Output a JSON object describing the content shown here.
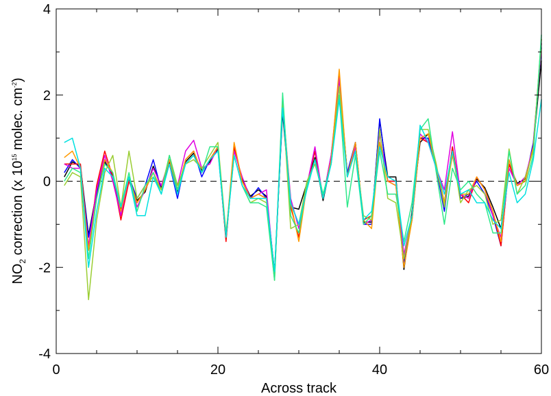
{
  "chart_data": {
    "type": "line",
    "xlabel": "Across track",
    "ylabel_parts": [
      "NO",
      "2",
      " correction (x 10",
      "15",
      " molec. cm",
      "-2",
      ")"
    ],
    "x": [
      1,
      2,
      3,
      4,
      5,
      6,
      7,
      8,
      9,
      10,
      11,
      12,
      13,
      14,
      15,
      16,
      17,
      18,
      19,
      20,
      21,
      22,
      23,
      24,
      25,
      26,
      27,
      28,
      29,
      30,
      31,
      32,
      33,
      34,
      35,
      36,
      37,
      38,
      39,
      40,
      41,
      42,
      43,
      44,
      45,
      46,
      47,
      48,
      49,
      50,
      51,
      52,
      53,
      54,
      55,
      56,
      57,
      58,
      59,
      60
    ],
    "series": [
      {
        "color": "#000000",
        "values": [
          0.1,
          0.45,
          0.35,
          -1.25,
          -0.25,
          0.45,
          0.15,
          -0.65,
          0.05,
          -0.45,
          -0.25,
          0.35,
          -0.15,
          0.45,
          -0.25,
          0.45,
          0.65,
          0.25,
          0.45,
          0.75,
          -1.35,
          0.75,
          0.05,
          -0.35,
          -0.2,
          -0.35,
          -2.1,
          1.6,
          -0.6,
          -0.65,
          -0.05,
          0.55,
          -0.45,
          0.45,
          2.4,
          0.15,
          0.9,
          -0.95,
          -0.95,
          1.4,
          0.1,
          0.1,
          -2.05,
          -0.7,
          0.9,
          1.1,
          0.35,
          -0.5,
          0.7,
          -0.4,
          -0.35,
          0.05,
          -0.15,
          -0.6,
          -1.1,
          0.4,
          -0.05,
          0.05,
          0.8,
          2.8
        ]
      },
      {
        "color": "#0000ff",
        "values": [
          0.2,
          0.5,
          0.3,
          -1.3,
          -0.3,
          0.5,
          0.1,
          -0.8,
          0.1,
          -0.4,
          -0.1,
          0.5,
          -0.2,
          0.4,
          -0.4,
          0.5,
          0.7,
          0.1,
          0.5,
          0.8,
          -1.3,
          0.8,
          0.0,
          -0.4,
          -0.15,
          -0.4,
          -2.2,
          1.7,
          -0.5,
          -1.0,
          -0.1,
          0.7,
          -0.4,
          0.6,
          2.2,
          0.2,
          0.9,
          -1.0,
          -1.0,
          1.45,
          0.0,
          0.0,
          -1.9,
          -0.9,
          1.0,
          1.0,
          0.3,
          -0.7,
          0.8,
          -0.4,
          -0.3,
          0.0,
          -0.3,
          -0.8,
          -1.5,
          0.4,
          -0.1,
          0.0,
          0.9,
          3.1
        ]
      },
      {
        "color": "#ff0000",
        "values": [
          0.4,
          0.4,
          0.4,
          -1.6,
          -0.1,
          0.7,
          0.1,
          -0.9,
          0.0,
          -0.5,
          -0.2,
          0.2,
          -0.2,
          0.5,
          -0.2,
          0.5,
          0.7,
          0.2,
          0.5,
          0.8,
          -1.4,
          0.8,
          0.0,
          -0.4,
          -0.3,
          -0.4,
          -2.2,
          1.8,
          -0.6,
          -1.3,
          -0.1,
          0.7,
          -0.4,
          0.5,
          2.5,
          0.1,
          0.8,
          -0.9,
          -0.8,
          0.9,
          0.0,
          0.0,
          -1.8,
          -0.8,
          1.0,
          0.9,
          0.3,
          -0.5,
          0.8,
          -0.3,
          -0.5,
          0.1,
          -0.2,
          -0.7,
          -1.5,
          0.4,
          -0.1,
          0.0,
          0.8,
          3.2
        ]
      },
      {
        "color": "#e000e0",
        "values": [
          0.4,
          0.3,
          0.3,
          -1.5,
          -0.2,
          0.6,
          0.0,
          -0.8,
          0.1,
          -0.6,
          -0.2,
          0.3,
          -0.1,
          0.5,
          -0.1,
          0.7,
          0.95,
          0.3,
          0.4,
          0.8,
          -1.3,
          0.7,
          0.1,
          -0.4,
          -0.3,
          -0.2,
          -2.2,
          1.8,
          -0.4,
          -1.1,
          -0.1,
          0.8,
          -0.4,
          0.6,
          2.4,
          0.1,
          0.8,
          -1.0,
          -0.9,
          1.1,
          0.0,
          -0.1,
          -1.7,
          -0.8,
          1.1,
          0.9,
          0.3,
          -0.2,
          1.15,
          -0.3,
          -0.4,
          0.1,
          -0.2,
          -0.8,
          -1.3,
          0.3,
          -0.1,
          0.1,
          0.8,
          3.2
        ]
      },
      {
        "color": "#ff9900",
        "values": [
          0.55,
          0.7,
          0.3,
          -1.6,
          -0.4,
          0.5,
          0.2,
          -0.7,
          0.1,
          -0.5,
          -0.2,
          0.2,
          -0.2,
          0.5,
          -0.2,
          0.5,
          0.7,
          0.2,
          0.5,
          0.8,
          -1.3,
          0.9,
          0.0,
          -0.4,
          -0.3,
          -0.4,
          -2.2,
          1.9,
          -0.5,
          -1.4,
          -0.1,
          0.5,
          -0.4,
          0.5,
          2.6,
          0.1,
          0.9,
          -0.9,
          -1.1,
          0.9,
          0.0,
          -0.1,
          -2.0,
          -0.9,
          1.0,
          1.1,
          0.3,
          -0.5,
          0.6,
          -0.3,
          -0.3,
          0.1,
          -0.2,
          -0.7,
          -1.4,
          0.5,
          -0.1,
          0.0,
          0.8,
          3.3
        ]
      },
      {
        "color": "#9acd32",
        "values": [
          -0.1,
          0.2,
          0.1,
          -2.75,
          -0.9,
          0.2,
          0.6,
          -0.6,
          0.7,
          -0.4,
          -0.1,
          0.1,
          -0.2,
          0.6,
          -0.1,
          0.4,
          0.5,
          0.3,
          0.6,
          0.9,
          -1.2,
          0.6,
          -0.1,
          -0.5,
          -0.4,
          -0.5,
          -2.3,
          1.9,
          -1.1,
          -1.0,
          0.0,
          0.4,
          -0.3,
          0.4,
          2.2,
          0.1,
          0.7,
          -0.8,
          -0.9,
          1.2,
          -0.4,
          -0.5,
          -1.8,
          -0.8,
          1.2,
          1.2,
          0.4,
          -0.6,
          0.7,
          -0.5,
          -0.2,
          -0.1,
          -0.3,
          -1.0,
          -0.9,
          0.75,
          -0.3,
          0.1,
          0.7,
          3.3
        ]
      },
      {
        "color": "#2ee88a",
        "values": [
          0.0,
          0.3,
          0.2,
          -1.8,
          -0.4,
          0.4,
          0.2,
          -0.6,
          0.2,
          -0.7,
          -0.1,
          0.2,
          -0.3,
          0.6,
          -0.2,
          0.4,
          0.6,
          0.2,
          0.8,
          0.8,
          -1.3,
          0.6,
          -0.1,
          -0.5,
          -0.5,
          -0.6,
          -2.3,
          2.05,
          -0.8,
          -1.2,
          -0.1,
          0.5,
          -0.3,
          0.4,
          2.0,
          -0.6,
          0.6,
          -1.0,
          -0.8,
          0.7,
          -0.3,
          -0.3,
          -1.4,
          -0.5,
          1.2,
          1.45,
          0.2,
          -1.0,
          0.3,
          -0.2,
          0.0,
          -0.3,
          -0.5,
          -1.2,
          -1.2,
          0.7,
          -0.3,
          -0.1,
          0.6,
          3.4
        ]
      },
      {
        "color": "#00e0e0",
        "values": [
          0.9,
          1.0,
          0.3,
          -2.0,
          -0.7,
          0.3,
          0.1,
          -0.6,
          0.1,
          -0.8,
          -0.8,
          0.1,
          -0.3,
          0.4,
          -0.3,
          0.4,
          0.6,
          0.2,
          0.5,
          0.7,
          -1.3,
          0.6,
          -0.1,
          -0.4,
          -0.4,
          -0.4,
          -2.1,
          1.7,
          -0.5,
          -1.0,
          -0.2,
          0.5,
          -0.4,
          0.4,
          1.9,
          0.1,
          0.7,
          -0.9,
          -0.7,
          0.8,
          0.1,
          0.0,
          -1.5,
          -0.8,
          1.3,
          0.9,
          0.3,
          -0.3,
          0.7,
          -0.3,
          -0.2,
          -0.5,
          -0.5,
          -0.9,
          -1.1,
          0.2,
          -0.5,
          -0.3,
          0.5,
          1.9
        ]
      }
    ],
    "xlim": [
      0,
      60
    ],
    "xticks": [
      0,
      20,
      40,
      60
    ],
    "xminorticks": [
      5,
      10,
      15,
      25,
      30,
      35,
      45,
      50,
      55
    ],
    "ylim": [
      -4,
      4
    ],
    "yticks": [
      -4,
      -2,
      0,
      2,
      4
    ],
    "yminorticks": [
      -3,
      -1,
      1,
      3
    ],
    "hline": 0
  }
}
